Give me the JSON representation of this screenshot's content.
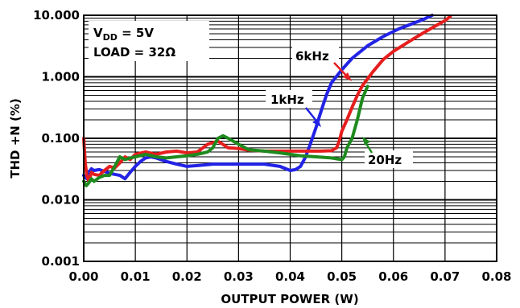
{
  "chart_data": {
    "type": "line",
    "xlabel": "OUTPUT POWER (W)",
    "ylabel": "THD +N (%)",
    "xlim": [
      0,
      0.08
    ],
    "ylim": [
      0.001,
      10
    ],
    "yscale": "log",
    "grid": true,
    "x_ticks": [
      "0.00",
      "0.01",
      "0.02",
      "0.03",
      "0.04",
      "0.05",
      "0.06",
      "0.07",
      "0.08"
    ],
    "y_ticks": [
      "0.001",
      "0.010",
      "0.100",
      "1.000",
      "10.000"
    ],
    "conditions": {
      "vdd": "V",
      "vdd_sub": "DD",
      "vdd_value": " = 5V",
      "load": "LOAD = 32Ω"
    },
    "annotations": [
      "6kHz",
      "1kHz",
      "20Hz"
    ],
    "series": [
      {
        "name": "1kHz",
        "color": "#2323e6",
        "x": [
          0.0,
          0.0006,
          0.001,
          0.0015,
          0.002,
          0.003,
          0.004,
          0.005,
          0.006,
          0.007,
          0.008,
          0.009,
          0.01,
          0.011,
          0.012,
          0.013,
          0.014,
          0.016,
          0.018,
          0.02,
          0.022,
          0.025,
          0.03,
          0.035,
          0.038,
          0.04,
          0.041,
          0.042,
          0.043,
          0.044,
          0.045,
          0.046,
          0.047,
          0.048,
          0.05,
          0.052,
          0.055,
          0.058,
          0.061,
          0.064,
          0.066,
          0.0675
        ],
        "y": [
          0.025,
          0.022,
          0.028,
          0.032,
          0.03,
          0.031,
          0.029,
          0.027,
          0.026,
          0.025,
          0.022,
          0.028,
          0.035,
          0.042,
          0.048,
          0.05,
          0.048,
          0.042,
          0.038,
          0.035,
          0.036,
          0.038,
          0.038,
          0.038,
          0.035,
          0.03,
          0.031,
          0.035,
          0.05,
          0.085,
          0.15,
          0.28,
          0.5,
          0.8,
          1.3,
          2.0,
          3.2,
          4.5,
          6.0,
          7.5,
          8.7,
          10.0
        ]
      },
      {
        "name": "6kHz",
        "color": "#e61e1e",
        "x": [
          0.0,
          0.0003,
          0.0006,
          0.001,
          0.0015,
          0.002,
          0.003,
          0.004,
          0.005,
          0.006,
          0.007,
          0.008,
          0.009,
          0.01,
          0.012,
          0.014,
          0.016,
          0.018,
          0.02,
          0.022,
          0.024,
          0.026,
          0.028,
          0.03,
          0.032,
          0.035,
          0.038,
          0.04,
          0.042,
          0.044,
          0.046,
          0.048,
          0.049,
          0.0495,
          0.05,
          0.051,
          0.052,
          0.053,
          0.054,
          0.056,
          0.058,
          0.06,
          0.062,
          0.064,
          0.066,
          0.068,
          0.07,
          0.071
        ],
        "y": [
          0.1,
          0.04,
          0.025,
          0.02,
          0.028,
          0.026,
          0.025,
          0.03,
          0.035,
          0.033,
          0.04,
          0.05,
          0.045,
          0.055,
          0.06,
          0.055,
          0.06,
          0.062,
          0.058,
          0.06,
          0.08,
          0.09,
          0.07,
          0.068,
          0.064,
          0.062,
          0.062,
          0.062,
          0.062,
          0.062,
          0.062,
          0.063,
          0.07,
          0.09,
          0.13,
          0.2,
          0.32,
          0.5,
          0.72,
          1.2,
          1.9,
          2.6,
          3.3,
          4.2,
          5.3,
          6.6,
          8.2,
          9.6
        ]
      },
      {
        "name": "20Hz",
        "color": "#1e8a1e",
        "x": [
          0.0,
          0.0005,
          0.001,
          0.0015,
          0.002,
          0.003,
          0.004,
          0.005,
          0.006,
          0.007,
          0.008,
          0.009,
          0.01,
          0.012,
          0.014,
          0.016,
          0.018,
          0.02,
          0.022,
          0.024,
          0.025,
          0.026,
          0.027,
          0.028,
          0.03,
          0.032,
          0.035,
          0.038,
          0.04,
          0.042,
          0.045,
          0.048,
          0.05,
          0.0505,
          0.051,
          0.052,
          0.053,
          0.054,
          0.055
        ],
        "y": [
          0.02,
          0.017,
          0.019,
          0.022,
          0.02,
          0.023,
          0.025,
          0.025,
          0.035,
          0.05,
          0.045,
          0.048,
          0.05,
          0.055,
          0.05,
          0.048,
          0.05,
          0.052,
          0.055,
          0.06,
          0.07,
          0.1,
          0.11,
          0.1,
          0.08,
          0.065,
          0.062,
          0.058,
          0.055,
          0.052,
          0.05,
          0.048,
          0.045,
          0.05,
          0.07,
          0.1,
          0.2,
          0.45,
          0.7
        ]
      }
    ]
  }
}
